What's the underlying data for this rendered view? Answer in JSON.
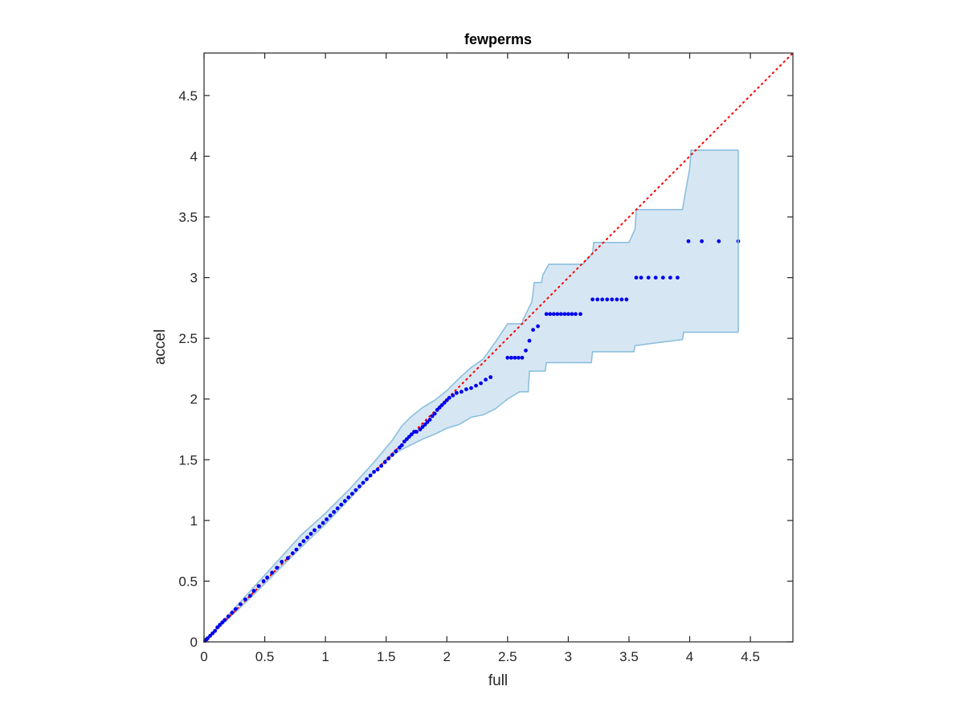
{
  "chart_data": {
    "type": "scatter",
    "title": "fewperms",
    "xlabel": "full",
    "ylabel": "accel",
    "xlim": [
      0,
      4.85
    ],
    "ylim": [
      0,
      4.85
    ],
    "xticks": [
      "0",
      "0.5",
      "1",
      "1.5",
      "2",
      "2.5",
      "3",
      "3.5",
      "4",
      "4.5"
    ],
    "yticks": [
      "0",
      "0.5",
      "1",
      "1.5",
      "2",
      "2.5",
      "3",
      "3.5",
      "4",
      "4.5"
    ],
    "grid": false,
    "colors": {
      "points": "#0000ee",
      "reference_line": "#ff0000",
      "band_fill": "#d6e7f3",
      "band_edge": "#8cbfdd"
    },
    "reference_line": {
      "x": [
        0,
        4.85
      ],
      "y": [
        0,
        4.85
      ],
      "style": "dotted"
    },
    "band_upper": {
      "x": [
        0,
        0.2,
        0.4,
        0.6,
        0.8,
        1.0,
        1.2,
        1.4,
        1.55,
        1.63,
        1.7,
        1.8,
        1.9,
        2.0,
        2.1,
        2.2,
        2.3,
        2.4,
        2.5,
        2.62,
        2.63,
        2.7,
        2.72,
        2.78,
        2.79,
        2.84,
        3.12,
        3.2,
        3.21,
        3.5,
        3.55,
        3.56,
        3.94,
        4.0,
        4.01,
        4.4
      ],
      "y": [
        0,
        0.22,
        0.44,
        0.66,
        0.88,
        1.06,
        1.26,
        1.48,
        1.66,
        1.78,
        1.85,
        1.93,
        1.99,
        2.07,
        2.17,
        2.26,
        2.33,
        2.47,
        2.62,
        2.62,
        2.66,
        2.8,
        2.96,
        2.96,
        3.02,
        3.11,
        3.11,
        3.2,
        3.29,
        3.29,
        3.4,
        3.56,
        3.56,
        3.9,
        4.05,
        4.05
      ]
    },
    "band_lower": {
      "x": [
        4.4,
        3.95,
        3.94,
        3.55,
        3.54,
        3.2,
        3.19,
        2.82,
        2.81,
        2.68,
        2.67,
        2.6,
        2.55,
        2.5,
        2.4,
        2.3,
        2.2,
        2.1,
        2.0,
        1.9,
        1.8,
        1.7,
        1.6,
        1.5,
        1.4,
        1.3,
        1.2,
        1.0,
        0.8,
        0.6,
        0.4,
        0.2,
        0
      ],
      "y": [
        2.55,
        2.55,
        2.49,
        2.44,
        2.39,
        2.39,
        2.3,
        2.3,
        2.23,
        2.23,
        2.06,
        2.06,
        2.03,
        2.0,
        1.92,
        1.87,
        1.85,
        1.79,
        1.76,
        1.71,
        1.67,
        1.62,
        1.57,
        1.49,
        1.4,
        1.29,
        1.18,
        0.97,
        0.78,
        0.58,
        0.38,
        0.19,
        0
      ]
    },
    "series": [
      {
        "x": [
          0.01,
          0.02,
          0.03,
          0.05,
          0.07,
          0.09,
          0.11,
          0.13,
          0.15,
          0.17,
          0.2,
          0.23,
          0.26,
          0.3,
          0.34,
          0.38,
          0.41,
          0.45,
          0.49,
          0.52,
          0.56,
          0.6,
          0.64,
          0.69,
          0.73,
          0.76,
          0.79,
          0.82,
          0.85,
          0.88,
          0.91,
          0.95,
          0.98,
          1.01,
          1.04,
          1.07,
          1.1,
          1.13,
          1.16,
          1.19,
          1.22,
          1.25,
          1.28,
          1.31,
          1.34,
          1.37,
          1.4,
          1.43,
          1.46,
          1.49,
          1.52,
          1.55,
          1.58,
          1.61,
          1.63,
          1.65,
          1.67,
          1.69,
          1.71,
          1.73,
          1.75,
          1.78,
          1.8,
          1.82,
          1.84,
          1.86,
          1.88,
          1.9,
          1.92,
          1.94,
          1.96,
          1.98,
          2.0,
          2.02,
          2.05,
          2.08,
          2.12,
          2.16,
          2.2,
          2.24,
          2.28,
          2.32,
          2.36,
          2.5,
          2.53,
          2.56,
          2.59,
          2.62,
          2.65,
          2.68,
          2.71,
          2.75,
          2.82,
          2.85,
          2.88,
          2.91,
          2.94,
          2.97,
          3.0,
          3.03,
          3.06,
          3.1,
          3.2,
          3.24,
          3.28,
          3.32,
          3.36,
          3.4,
          3.44,
          3.48,
          3.56,
          3.6,
          3.66,
          3.72,
          3.78,
          3.84,
          3.9,
          3.99,
          4.1,
          4.24,
          4.4
        ],
        "y": [
          0.01,
          0.02,
          0.03,
          0.05,
          0.07,
          0.09,
          0.12,
          0.14,
          0.16,
          0.18,
          0.21,
          0.24,
          0.27,
          0.31,
          0.35,
          0.38,
          0.42,
          0.46,
          0.5,
          0.53,
          0.57,
          0.61,
          0.66,
          0.69,
          0.73,
          0.76,
          0.8,
          0.83,
          0.86,
          0.89,
          0.92,
          0.95,
          0.98,
          1.01,
          1.04,
          1.07,
          1.1,
          1.13,
          1.16,
          1.19,
          1.22,
          1.25,
          1.28,
          1.31,
          1.34,
          1.37,
          1.4,
          1.42,
          1.45,
          1.48,
          1.51,
          1.54,
          1.57,
          1.6,
          1.62,
          1.65,
          1.67,
          1.69,
          1.71,
          1.73,
          1.73,
          1.75,
          1.77,
          1.79,
          1.81,
          1.83,
          1.86,
          1.88,
          1.91,
          1.93,
          1.95,
          1.97,
          1.99,
          2.01,
          2.03,
          2.05,
          2.06,
          2.08,
          2.09,
          2.11,
          2.13,
          2.16,
          2.18,
          2.34,
          2.34,
          2.34,
          2.34,
          2.34,
          2.4,
          2.48,
          2.57,
          2.6,
          2.7,
          2.7,
          2.7,
          2.7,
          2.7,
          2.7,
          2.7,
          2.7,
          2.7,
          2.7,
          2.82,
          2.82,
          2.82,
          2.82,
          2.82,
          2.82,
          2.82,
          2.82,
          3.0,
          3.0,
          3.0,
          3.0,
          3.0,
          3.0,
          3.0,
          3.3,
          3.3,
          3.3,
          3.3
        ]
      }
    ]
  }
}
